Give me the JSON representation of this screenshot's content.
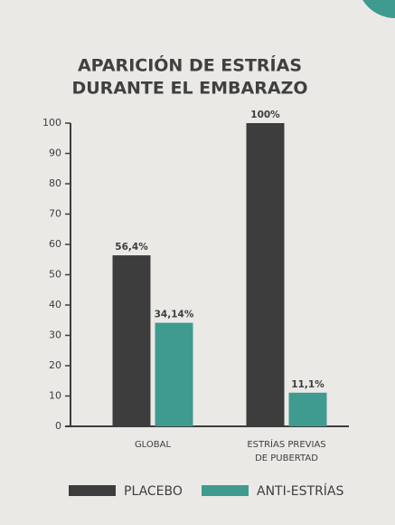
{
  "chart_data": {
    "type": "bar",
    "title": [
      "APARICIÓN DE ESTRÍAS",
      "DURANTE EL EMBARAZO"
    ],
    "categories": [
      [
        "GLOBAL"
      ],
      [
        "ESTRÍAS PREVIAS",
        "DE PUBERTAD"
      ]
    ],
    "series": [
      {
        "name": "PLACEBO",
        "color": "#3d3d3d",
        "values": [
          56.4,
          100
        ],
        "value_labels": [
          "56,4%",
          "100%"
        ]
      },
      {
        "name": "ANTI-ESTRÍAS",
        "color": "#3f9a8f",
        "values": [
          34.14,
          11.1
        ],
        "value_labels": [
          "34,14%",
          "11,1%"
        ]
      }
    ],
    "ylim": [
      0,
      100
    ],
    "yticks": [
      0,
      10,
      20,
      30,
      40,
      50,
      60,
      70,
      80,
      90,
      100
    ],
    "grid": false,
    "legend": "bottom"
  }
}
